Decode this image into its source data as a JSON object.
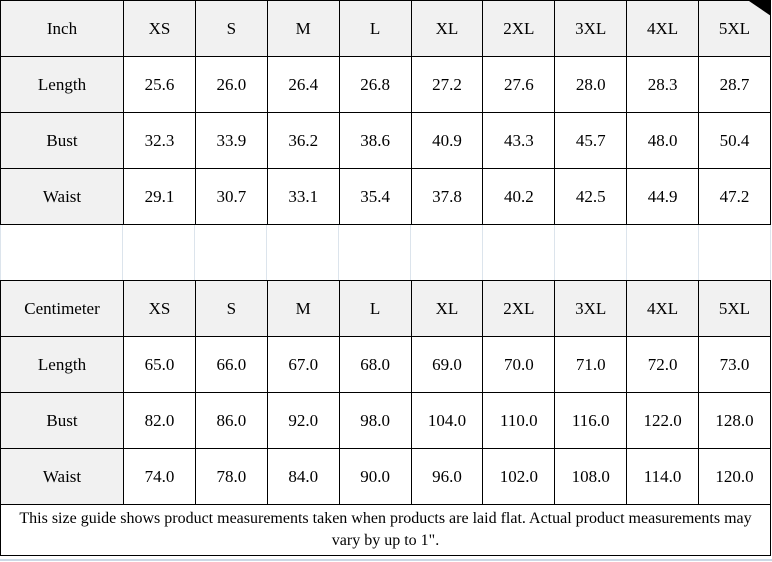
{
  "colors": {
    "header_bg": "#f1f1f1",
    "border": "#000000",
    "gap_line": "#dce4ec",
    "bottom_strip": "#ccd9e6",
    "corner_triangle": "#000000"
  },
  "inch_table": {
    "unit_label": "Inch",
    "sizes": [
      "XS",
      "S",
      "M",
      "L",
      "XL",
      "2XL",
      "3XL",
      "4XL",
      "5XL"
    ],
    "rows": [
      {
        "label": "Length",
        "values": [
          "25.6",
          "26.0",
          "26.4",
          "26.8",
          "27.2",
          "27.6",
          "28.0",
          "28.3",
          "28.7"
        ]
      },
      {
        "label": "Bust",
        "values": [
          "32.3",
          "33.9",
          "36.2",
          "38.6",
          "40.9",
          "43.3",
          "45.7",
          "48.0",
          "50.4"
        ]
      },
      {
        "label": "Waist",
        "values": [
          "29.1",
          "30.7",
          "33.1",
          "35.4",
          "37.8",
          "40.2",
          "42.5",
          "44.9",
          "47.2"
        ]
      }
    ]
  },
  "cm_table": {
    "unit_label": "Centimeter",
    "sizes": [
      "XS",
      "S",
      "M",
      "L",
      "XL",
      "2XL",
      "3XL",
      "4XL",
      "5XL"
    ],
    "rows": [
      {
        "label": "Length",
        "values": [
          "65.0",
          "66.0",
          "67.0",
          "68.0",
          "69.0",
          "70.0",
          "71.0",
          "72.0",
          "73.0"
        ]
      },
      {
        "label": "Bust",
        "values": [
          "82.0",
          "86.0",
          "92.0",
          "98.0",
          "104.0",
          "110.0",
          "116.0",
          "122.0",
          "128.0"
        ]
      },
      {
        "label": "Waist",
        "values": [
          "74.0",
          "78.0",
          "84.0",
          "90.0",
          "96.0",
          "102.0",
          "108.0",
          "114.0",
          "120.0"
        ]
      }
    ]
  },
  "footer": {
    "note": "This size guide shows product measurements taken when products are laid flat. Actual product measurements may vary by up to 1\"."
  }
}
